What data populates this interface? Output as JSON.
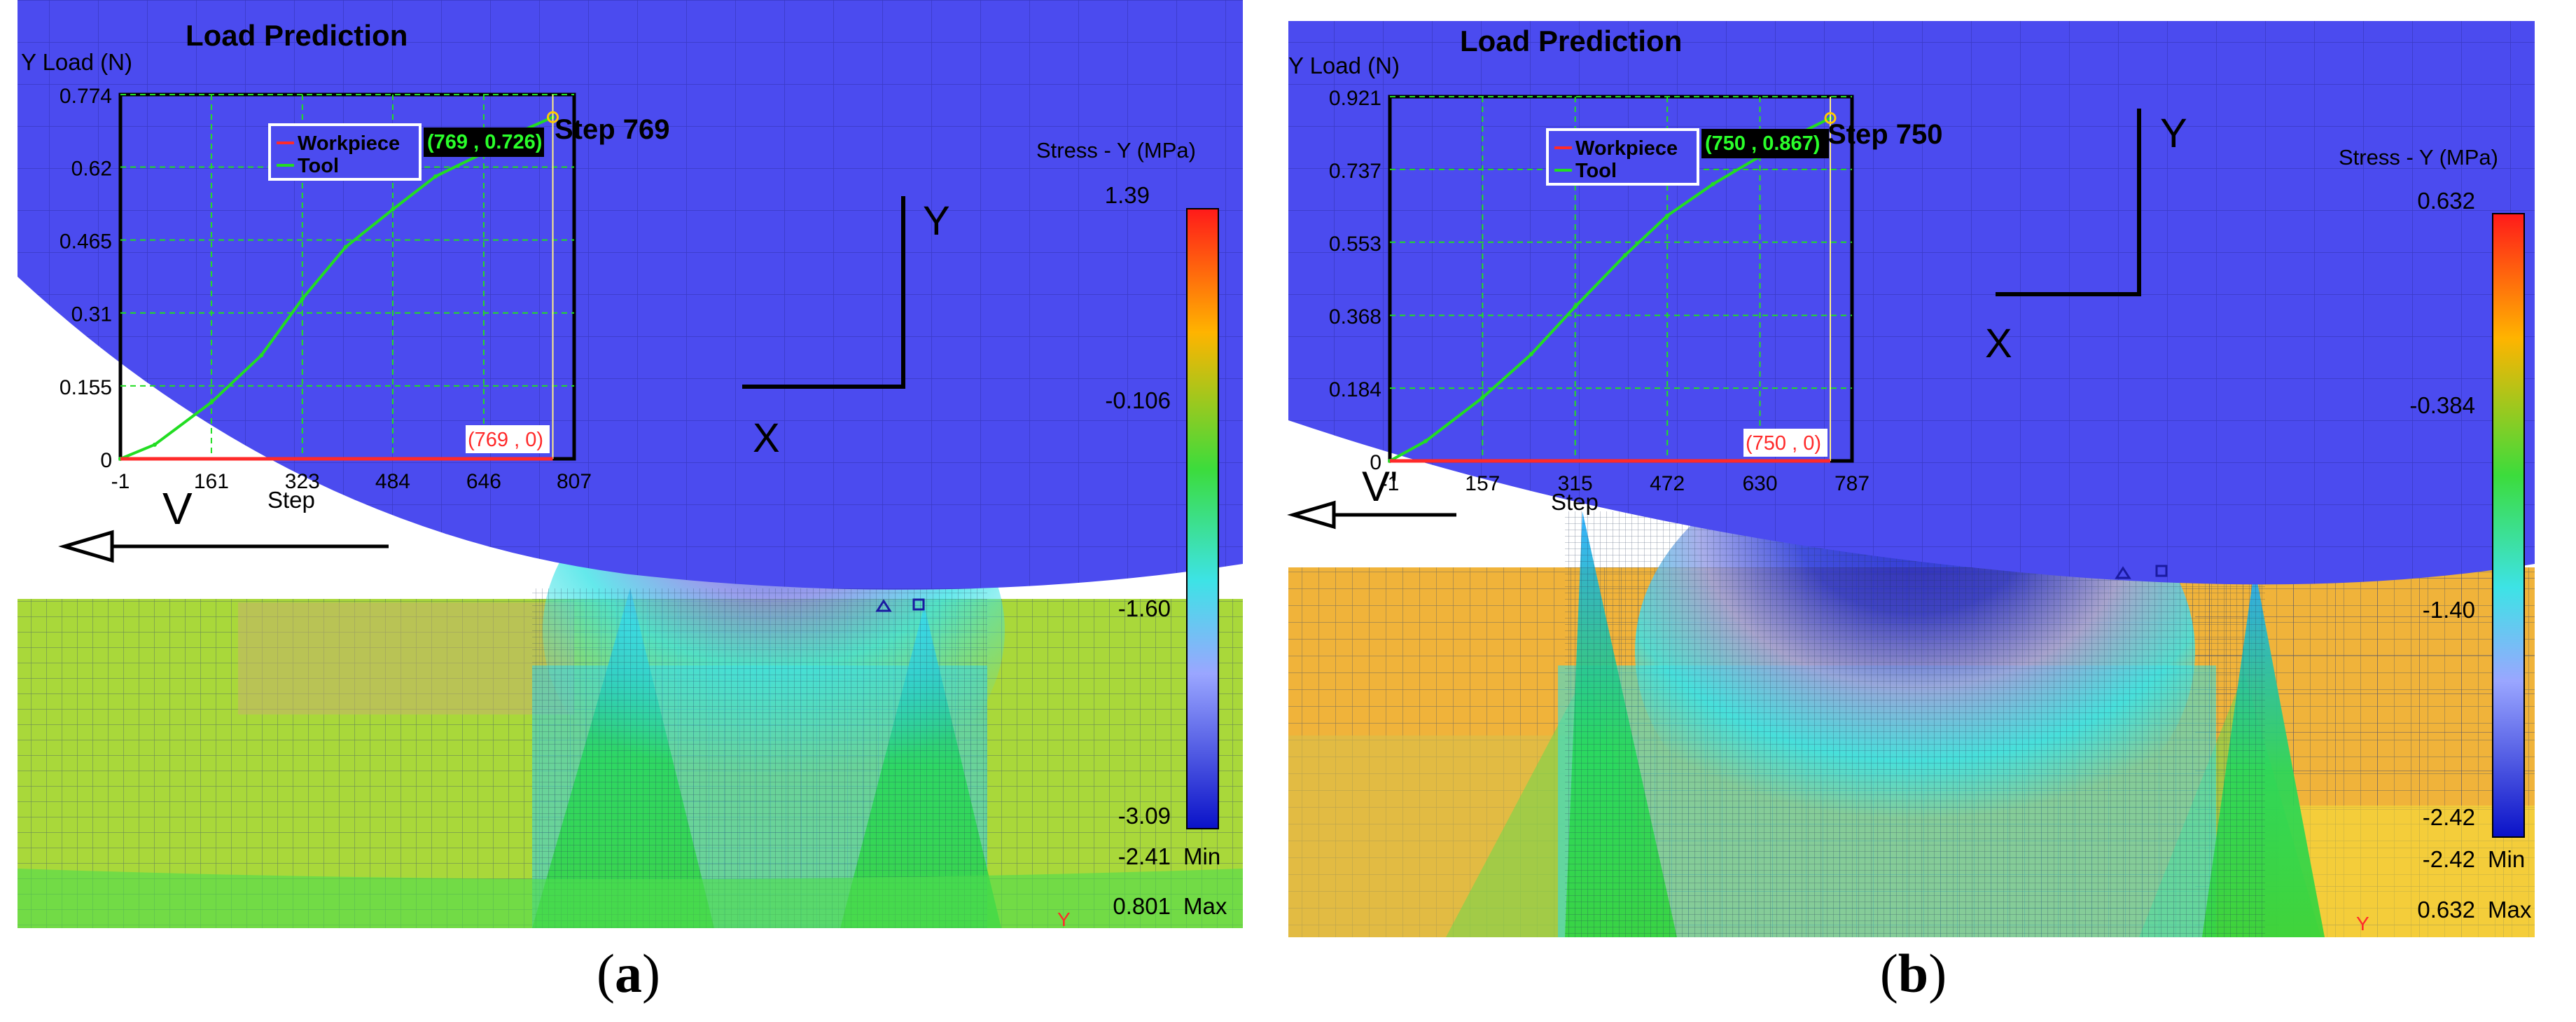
{
  "panels": [
    {
      "caption_letter": "a",
      "title": "Load Prediction",
      "y_label": "Y Load (N)",
      "x_label": "Step",
      "y_ticks": [
        "0.774",
        "0.62",
        "0.465",
        "0.31",
        "0.155",
        "0"
      ],
      "x_ticks": [
        "-1",
        "161",
        "323",
        "484",
        "646",
        "807"
      ],
      "legend": [
        "Workpiece",
        "Tool"
      ],
      "point_label": "(769 , 0.726)",
      "base_label": "(769 , 0)",
      "step_label": "Step  769",
      "velocity_label": "V",
      "colorbar_title": "Stress - Y (MPa)",
      "colorbar_values": [
        "1.39",
        "-0.106",
        "-1.60",
        "-3.09"
      ],
      "min_value": "-2.41",
      "min_label": "Min",
      "max_value": "0.801",
      "max_label": "Max",
      "axis_x": "X",
      "axis_y": "Y",
      "y_marker": "Y"
    },
    {
      "caption_letter": "b",
      "title": "Load Prediction",
      "y_label": "Y Load (N)",
      "x_label": "Step",
      "y_ticks": [
        "0.921",
        "0.737",
        "0.553",
        "0.368",
        "0.184",
        "0"
      ],
      "x_ticks": [
        "-1",
        "157",
        "315",
        "472",
        "630",
        "787"
      ],
      "legend": [
        "Workpiece",
        "Tool"
      ],
      "point_label": "(750 , 0.867)",
      "base_label": "(750 , 0)",
      "step_label": "Step  750",
      "velocity_label": "V'",
      "colorbar_title": "Stress - Y (MPa)",
      "colorbar_values": [
        "0.632",
        "-0.384",
        "-1.40",
        "-2.42"
      ],
      "min_value": "-2.42",
      "min_label": "Min",
      "max_value": "0.632",
      "max_label": "Max",
      "axis_x": "X",
      "axis_y": "Y",
      "y_marker": "Y"
    }
  ],
  "colors": {
    "tool": "#4b4bef",
    "tool_line": "#3a3ad8",
    "workpiece_a": "#a9d83a",
    "workpiece_b": "#f0b33a",
    "stress_low": "#0a12c8",
    "stress_mid": "#3de3e6",
    "curve": "#22dd22",
    "workpiece_line": "#ff2a2a"
  },
  "chart_data": [
    {
      "type": "line",
      "title": "Load Prediction",
      "xlabel": "Step",
      "ylabel": "Y Load (N)",
      "xlim": [
        -1,
        807
      ],
      "ylim": [
        0,
        0.774
      ],
      "series": [
        {
          "name": "Tool",
          "x": [
            -1,
            60,
            161,
            250,
            323,
            400,
            484,
            560,
            646,
            720,
            769
          ],
          "y": [
            0,
            0.03,
            0.12,
            0.22,
            0.34,
            0.45,
            0.53,
            0.6,
            0.65,
            0.7,
            0.726
          ]
        },
        {
          "name": "Workpiece",
          "x": [
            -1,
            769
          ],
          "y": [
            0,
            0
          ]
        }
      ]
    },
    {
      "type": "line",
      "title": "Load Prediction",
      "xlabel": "Step",
      "ylabel": "Y Load (N)",
      "xlim": [
        -1,
        787
      ],
      "ylim": [
        0,
        0.921
      ],
      "series": [
        {
          "name": "Tool",
          "x": [
            -1,
            60,
            157,
            240,
            315,
            400,
            472,
            550,
            630,
            700,
            750
          ],
          "y": [
            0,
            0.05,
            0.16,
            0.27,
            0.39,
            0.52,
            0.62,
            0.7,
            0.77,
            0.83,
            0.867
          ]
        },
        {
          "name": "Workpiece",
          "x": [
            -1,
            750
          ],
          "y": [
            0,
            0
          ]
        }
      ]
    }
  ]
}
